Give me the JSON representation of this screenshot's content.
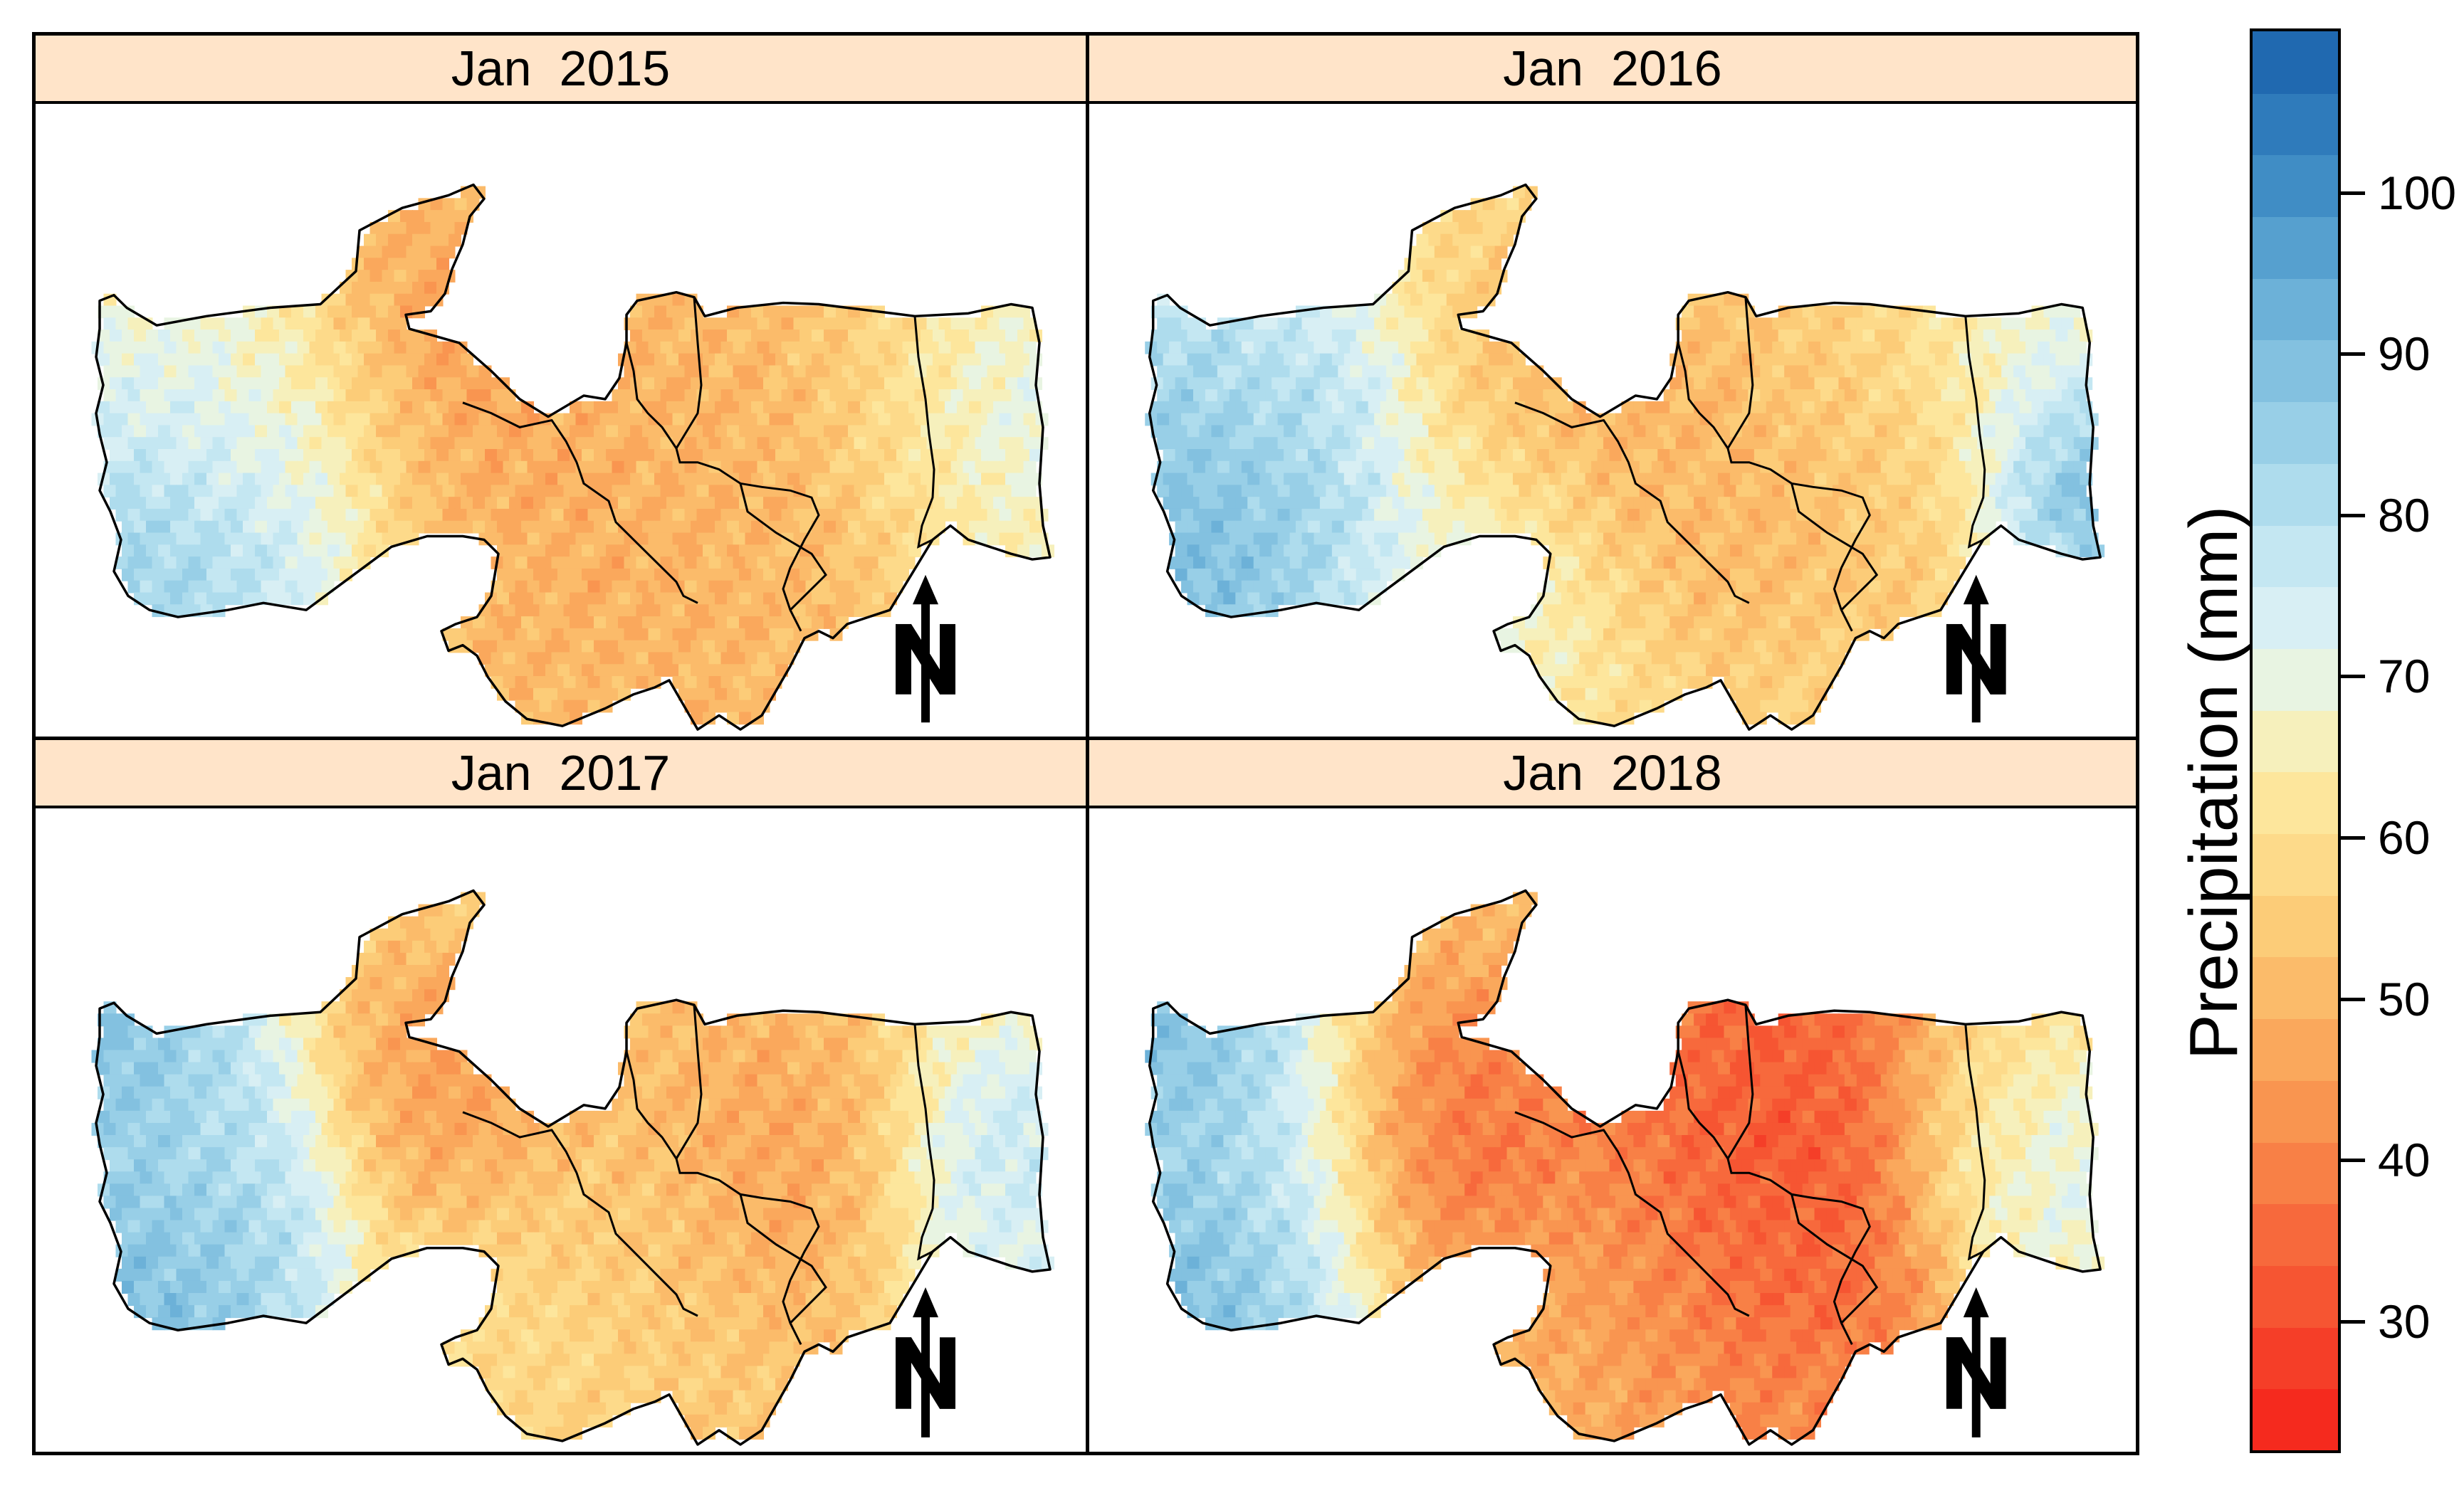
{
  "figure": {
    "panels": [
      {
        "title": "Jan  2015",
        "theme": "orange-dominant, blue southwest and east coast"
      },
      {
        "title": "Jan  2016",
        "theme": "mixed, blue west and coast"
      },
      {
        "title": "Jan  2017",
        "theme": "orange centre, blue west and east"
      },
      {
        "title": "Jan  2018",
        "theme": "red centre, blue west"
      }
    ],
    "north_arrow_label": "N"
  },
  "legend": {
    "title": "Precipitation (mm)",
    "ticks": [
      "30",
      "40",
      "50",
      "60",
      "70",
      "80",
      "90",
      "100"
    ],
    "range": [
      22,
      110
    ],
    "colors_low_to_high": [
      "#f52a1e",
      "#f53e28",
      "#f65532",
      "#f7693c",
      "#f88046",
      "#f99550",
      "#faa85c",
      "#fbbb6a",
      "#fccc78",
      "#fdda8a",
      "#fde69c",
      "#f6f0bc",
      "#e8f4e2",
      "#d8eff4",
      "#c4e7f2",
      "#aedced",
      "#98cfe7",
      "#83c1e0",
      "#6cb1d8",
      "#56a0cf",
      "#408dc5",
      "#2f7bbb",
      "#2069b0"
    ]
  }
}
